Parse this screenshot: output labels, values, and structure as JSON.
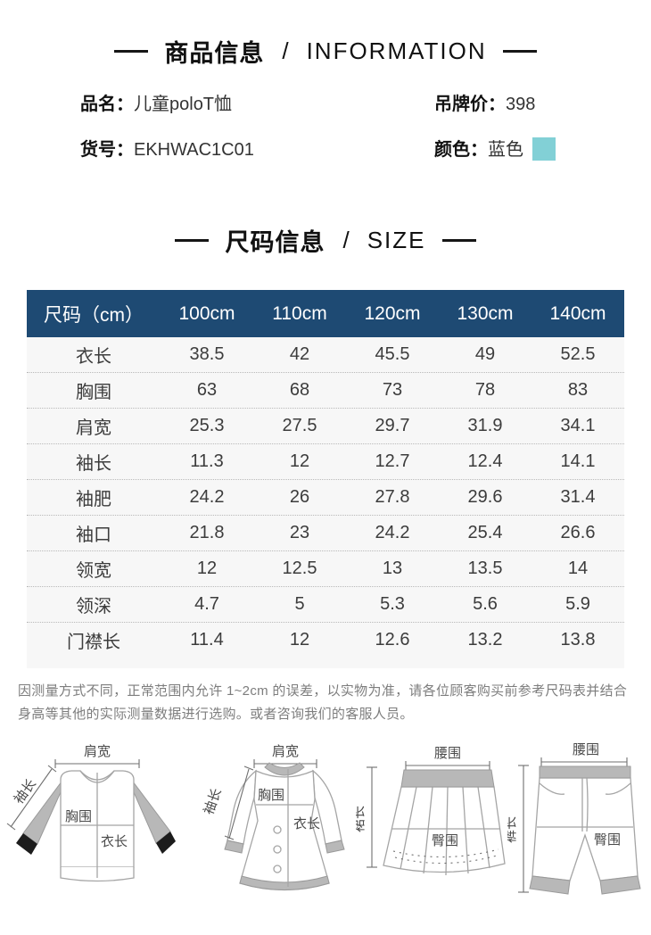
{
  "colors": {
    "table_header_navy": "#1e4a73",
    "color_swatch": "#82d0d6",
    "title_black": "#161616"
  },
  "info_section": {
    "title_zh": "商品信息",
    "title_sep": "/",
    "title_en": "INFORMATION",
    "fields": [
      {
        "label": "品名：",
        "value": "儿童poloT恤"
      },
      {
        "label": "吊牌价：",
        "value": "398"
      },
      {
        "label": "货号：",
        "value": "EKHWAC1C01"
      },
      {
        "label": "颜色：",
        "value": "蓝色",
        "swatch": "#82d0d6"
      }
    ]
  },
  "size_section": {
    "title_zh": "尺码信息",
    "title_sep": "/",
    "title_en": "SIZE"
  },
  "size_table": {
    "header": [
      "尺码（cm）",
      "100cm",
      "110cm",
      "120cm",
      "130cm",
      "140cm"
    ],
    "rows": [
      {
        "label": "衣长",
        "values": [
          "38.5",
          "42",
          "45.5",
          "49",
          "52.5"
        ]
      },
      {
        "label": "胸围",
        "values": [
          "63",
          "68",
          "73",
          "78",
          "83"
        ]
      },
      {
        "label": "肩宽",
        "values": [
          "25.3",
          "27.5",
          "29.7",
          "31.9",
          "34.1"
        ]
      },
      {
        "label": "袖长",
        "values": [
          "11.3",
          "12",
          "12.7",
          "12.4",
          "14.1"
        ]
      },
      {
        "label": "袖肥",
        "values": [
          "24.2",
          "26",
          "27.8",
          "29.6",
          "31.4"
        ]
      },
      {
        "label": "袖口",
        "values": [
          "21.8",
          "23",
          "24.2",
          "25.4",
          "26.6"
        ]
      },
      {
        "label": "领宽",
        "values": [
          "12",
          "12.5",
          "13",
          "13.5",
          "14"
        ]
      },
      {
        "label": "领深",
        "values": [
          "4.7",
          "5",
          "5.3",
          "5.6",
          "5.9"
        ]
      },
      {
        "label": "门襟长",
        "values": [
          "11.4",
          "12",
          "12.6",
          "13.2",
          "13.8"
        ]
      }
    ]
  },
  "note": "因测量方式不同，正常范围内允许 1~2cm 的误差，以实物为准，请各位顾客购买前参考尺码表并结合身高等其他的实际测量数据进行选购。或者咨询我们的客服人员。",
  "diagrams": [
    {
      "type": "sweater",
      "labels": {
        "shoulder": "肩宽",
        "sleeve": "袖长",
        "chest": "胸围",
        "length": "衣长"
      }
    },
    {
      "type": "dress",
      "labels": {
        "shoulder": "肩宽",
        "sleeve": "袖长",
        "chest": "胸围",
        "length": "衣长"
      }
    },
    {
      "type": "skirt",
      "labels": {
        "waist": "腰围",
        "length": "裙长",
        "hip": "臀围"
      }
    },
    {
      "type": "pants",
      "labels": {
        "waist": "腰围",
        "length": "裤长",
        "hip": "臀围"
      }
    }
  ]
}
